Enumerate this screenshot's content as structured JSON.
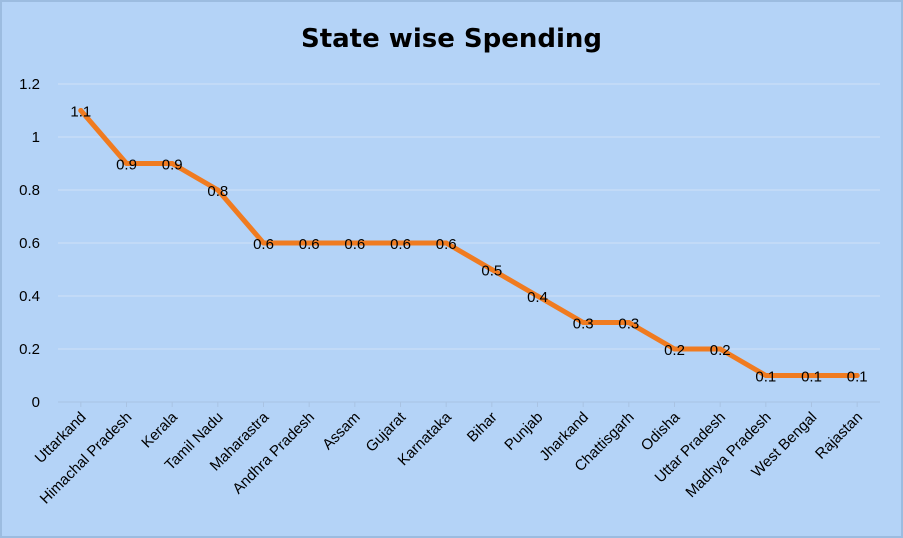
{
  "chart_data": {
    "type": "line",
    "title": "State wise Spending",
    "xlabel": "",
    "ylabel": "",
    "categories": [
      "Uttarkand",
      "Himachal Pradesh",
      "Kerala",
      "Tamil Nadu",
      "Maharastra",
      "Andhra Pradesh",
      "Assam",
      "Gujarat",
      "Karnataka",
      "Bihar",
      "Punjab",
      "Jharkand",
      "Chattisgarh",
      "Odisha",
      "Uttar Pradesh",
      "Madhya Pradesh",
      "West Bengal",
      "Rajastan"
    ],
    "series": [
      {
        "values": [
          1.1,
          0.9,
          0.9,
          0.8,
          0.6,
          0.6,
          0.6,
          0.6,
          0.6,
          0.5,
          0.4,
          0.3,
          0.3,
          0.2,
          0.2,
          0.1,
          0.1,
          0.1
        ],
        "color": "#f07b20"
      }
    ],
    "ylim": [
      0,
      1.2
    ],
    "yticks": [
      "0",
      "0.2",
      "0.4",
      "0.6",
      "0.8",
      "1",
      "1.2"
    ],
    "data_labels": [
      "1.1",
      "0.9",
      "0.9",
      "0.8",
      "0.6",
      "0.6",
      "0.6",
      "0.6",
      "0.6",
      "0.5",
      "0.4",
      "0.3",
      "0.3",
      "0.2",
      "0.2",
      "0.1",
      "0.1",
      "0.1"
    ],
    "grid": true,
    "legend": "none",
    "background": "#b4d3f7"
  }
}
